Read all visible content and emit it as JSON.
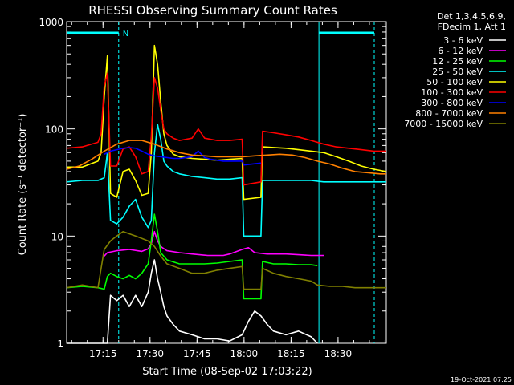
{
  "chart_data": {
    "type": "line",
    "title": "RHESSI Observing Summary Count Rates",
    "xlabel": "Start Time (08-Sep-02 17:03:22)",
    "ylabel": "Count Rate (s⁻¹ detector⁻¹)",
    "x_units": "minutes after 17:03:22",
    "xlim": [
      0,
      102
    ],
    "ylim": [
      1,
      1000
    ],
    "yscale": "log",
    "x_ticks": [
      {
        "x": 11.6,
        "label": "17:15"
      },
      {
        "x": 26.6,
        "label": "17:30"
      },
      {
        "x": 41.6,
        "label": "17:45"
      },
      {
        "x": 56.6,
        "label": "18:00"
      },
      {
        "x": 71.6,
        "label": "18:15"
      },
      {
        "x": 86.6,
        "label": "18:30"
      }
    ],
    "y_ticks": [
      {
        "y": 1,
        "label": "1"
      },
      {
        "y": 10,
        "label": "10"
      },
      {
        "y": 100,
        "label": "100"
      },
      {
        "y": 1000,
        "label": "1000"
      }
    ],
    "legend_header": [
      "Det 1,3,4,5,6,9,",
      "FDecim 1, Att 1"
    ],
    "legend_position": "outside-right",
    "flags": {
      "night_start_end": 16.6,
      "night_resume": 80.5,
      "saa_label": "N",
      "color": "#00ffff"
    },
    "footer_date": "19-Oct-2021 07:25",
    "series": [
      {
        "name": "3 - 6 keV",
        "color": "#ffffff",
        "x": [
          0,
          6,
          10,
          13,
          14,
          16,
          18,
          20,
          22,
          24,
          26,
          27,
          28,
          29,
          30,
          31,
          32,
          34,
          36,
          40,
          44,
          48,
          52,
          56,
          58,
          60,
          62,
          64,
          66,
          70,
          74,
          78,
          80
        ],
        "y": [
          1,
          1,
          1,
          1,
          2.8,
          2.5,
          2.8,
          2.2,
          2.8,
          2.2,
          3.0,
          4.5,
          6.0,
          4.0,
          3.0,
          2.2,
          1.8,
          1.5,
          1.3,
          1.2,
          1.1,
          1.1,
          1.05,
          1.2,
          1.6,
          2.0,
          1.8,
          1.5,
          1.3,
          1.2,
          1.3,
          1.15,
          1.0
        ]
      },
      {
        "name": "6 - 12 keV",
        "color": "#ff00ff",
        "x": [
          12,
          13,
          16,
          20,
          24,
          26,
          27,
          28,
          29,
          30,
          32,
          36,
          40,
          45,
          50,
          52,
          56,
          58,
          60,
          64,
          70,
          74,
          78,
          82
        ],
        "y": [
          6.5,
          7.0,
          7.3,
          7.5,
          7.2,
          7.6,
          8.5,
          11.0,
          9.0,
          8.0,
          7.3,
          7.0,
          6.8,
          6.6,
          6.6,
          6.8,
          7.5,
          7.8,
          7.0,
          6.8,
          6.8,
          6.7,
          6.6,
          6.6
        ]
      },
      {
        "name": "12 - 25 keV",
        "color": "#00ff00",
        "x": [
          0,
          5,
          10,
          12,
          13,
          14,
          16,
          18,
          20,
          22,
          24,
          26,
          27,
          28,
          29,
          30,
          32,
          36,
          40,
          44,
          48,
          52,
          56,
          56.5,
          62,
          62.5,
          66,
          70,
          74,
          78,
          80
        ],
        "y": [
          3.3,
          3.4,
          3.3,
          3.2,
          4.2,
          4.5,
          4.2,
          4.0,
          4.3,
          4.0,
          4.5,
          5.5,
          9.0,
          16.0,
          11.0,
          7.0,
          6.0,
          5.5,
          5.5,
          5.5,
          5.6,
          5.8,
          6.0,
          2.6,
          2.6,
          5.8,
          5.5,
          5.5,
          5.4,
          5.4,
          5.3
        ]
      },
      {
        "name": "25 - 50 keV",
        "color": "#00ffff",
        "x": [
          0,
          5,
          10,
          12,
          13,
          14,
          16,
          18,
          20,
          22,
          24,
          26,
          27,
          28,
          29,
          30,
          31,
          32,
          34,
          36,
          40,
          44,
          48,
          52,
          56,
          56.5,
          62,
          62.5,
          66,
          70,
          74,
          78,
          82,
          86,
          90,
          94,
          98,
          102
        ],
        "y": [
          32,
          33,
          33,
          35,
          60,
          14,
          13,
          15,
          19,
          22,
          15,
          12,
          14,
          60,
          110,
          80,
          50,
          45,
          40,
          38,
          36,
          35,
          34,
          34,
          35,
          10,
          10,
          33,
          33,
          33,
          33,
          33,
          32,
          32,
          32,
          32,
          32,
          32
        ]
      },
      {
        "name": "50 - 100 keV",
        "color": "#ffff00",
        "x": [
          0,
          5,
          10,
          11,
          12,
          13,
          14,
          16,
          18,
          20,
          22,
          24,
          26,
          27,
          28,
          29,
          30,
          31,
          32,
          34,
          36,
          40,
          44,
          48,
          52,
          56,
          56.5,
          62,
          62.5,
          66,
          70,
          74,
          78,
          82,
          86,
          90,
          94,
          98,
          102
        ],
        "y": [
          44,
          44,
          50,
          60,
          200,
          480,
          25,
          23,
          40,
          42,
          33,
          24,
          25,
          60,
          600,
          400,
          180,
          90,
          70,
          58,
          55,
          53,
          52,
          51,
          52,
          53,
          22,
          23,
          68,
          67,
          66,
          64,
          62,
          60,
          55,
          50,
          45,
          42,
          40
        ]
      },
      {
        "name": "100 - 300 keV",
        "color": "#ff0000",
        "x": [
          0,
          5,
          10,
          11,
          12,
          13,
          14,
          16,
          18,
          20,
          22,
          24,
          26,
          27,
          28,
          29,
          30,
          31,
          32,
          34,
          36,
          40,
          42,
          44,
          48,
          52,
          56,
          56.5,
          62,
          62.5,
          66,
          70,
          74,
          78,
          82,
          86,
          90,
          94,
          98,
          102
        ],
        "y": [
          66,
          68,
          75,
          90,
          250,
          330,
          45,
          45,
          65,
          68,
          55,
          38,
          40,
          85,
          300,
          240,
          150,
          100,
          90,
          82,
          78,
          82,
          100,
          82,
          78,
          78,
          80,
          30,
          32,
          95,
          92,
          88,
          84,
          78,
          72,
          68,
          66,
          64,
          62,
          62
        ]
      },
      {
        "name": "300 - 800 keV",
        "color": "#0000ff",
        "x": [
          12,
          14,
          16,
          18,
          20,
          22,
          24,
          26,
          28,
          30,
          32,
          34,
          36,
          38,
          40,
          42,
          44,
          46,
          50,
          54,
          56,
          56.5,
          62
        ],
        "y": [
          58,
          62,
          64,
          66,
          67,
          66,
          62,
          58,
          56,
          55,
          54,
          53,
          53,
          54,
          55,
          62,
          54,
          52,
          50,
          50,
          50,
          46,
          48
        ]
      },
      {
        "name": "800 - 7000 keV",
        "color": "#ff8000",
        "x": [
          0,
          4,
          8,
          12,
          16,
          20,
          24,
          28,
          32,
          36,
          40,
          44,
          48,
          52,
          56,
          60,
          64,
          68,
          72,
          76,
          80,
          84,
          88,
          92,
          96,
          100,
          102
        ],
        "y": [
          42,
          45,
          52,
          62,
          72,
          78,
          78,
          72,
          65,
          60,
          57,
          56,
          55,
          55,
          55,
          56,
          57,
          58,
          57,
          54,
          50,
          47,
          43,
          40,
          39,
          38,
          38
        ]
      },
      {
        "name": "7000 - 15000 keV",
        "color": "#808000",
        "x": [
          0,
          5,
          10,
          11,
          12,
          14,
          16,
          18,
          20,
          22,
          24,
          26,
          28,
          30,
          32,
          36,
          40,
          44,
          48,
          52,
          56,
          56.5,
          62,
          62.5,
          66,
          70,
          74,
          78,
          80,
          84,
          88,
          92,
          96,
          100,
          102
        ],
        "y": [
          3.3,
          3.5,
          3.3,
          5.0,
          7.5,
          9.0,
          10.0,
          11.0,
          10.5,
          10.0,
          9.5,
          9.0,
          8.0,
          6.5,
          5.5,
          5.0,
          4.5,
          4.5,
          4.8,
          5.0,
          5.2,
          3.2,
          3.2,
          5.0,
          4.5,
          4.2,
          4.0,
          3.8,
          3.5,
          3.4,
          3.4,
          3.3,
          3.3,
          3.3,
          3.3
        ]
      }
    ]
  }
}
